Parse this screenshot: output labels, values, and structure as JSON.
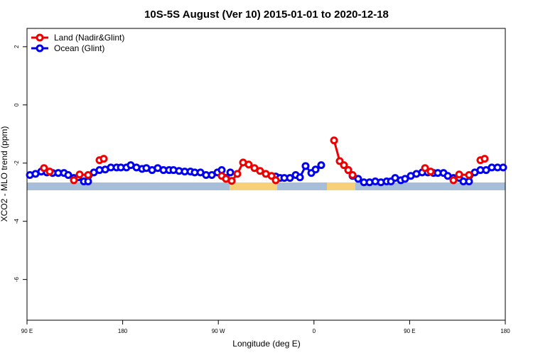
{
  "chart_data": {
    "type": "line",
    "title": "10S-5S August (Ver 10)   2015-01-01 to 2020-12-18",
    "x_label": "Longitude (deg E)",
    "y_label": "XCO2 - MLO trend (ppm)",
    "xlim": [
      90,
      540
    ],
    "ylim": [
      -7.4,
      2.63
    ],
    "xticks": [
      {
        "value": 90,
        "label": "90 E"
      },
      180,
      {
        "value": 270,
        "label": "90 W"
      },
      {
        "value": 360,
        "label": "0"
      },
      {
        "value": 450,
        "label": "90 E"
      },
      {
        "value": 540,
        "label": "180"
      }
    ],
    "yticks": [
      -6,
      -4,
      -2,
      0,
      2
    ],
    "legend": "top-left",
    "series": [
      {
        "name": "Ocean (Glint)",
        "color": "#0000ee",
        "x": [
          92.7,
          98.0,
          103.4,
          108.7,
          114.1,
          119.4,
          124.8,
          128.8,
          134.1,
          138.1,
          143.5,
          147.5,
          152.9,
          158.2,
          163.6,
          168.9,
          174.3,
          178.3,
          183.6,
          187.6,
          193.0,
          198.3,
          202.3,
          207.7,
          213.0,
          218.4,
          223.7,
          227.8,
          233.1,
          238.4,
          243.8,
          247.8,
          253.2,
          258.5,
          263.9,
          269.2,
          273.2,
          277.2,
          281.3,
          null,
          324.0,
          328.1,
          332.1,
          337.4,
          342.8,
          346.8,
          352.1,
          357.5,
          361.5,
          366.8,
          null,
          392.3,
          396.3,
          401.6,
          407.0,
          412.3,
          417.7,
          423.0,
          428.4,
          432.4,
          436.4,
          441.7,
          445.7,
          451.1,
          456.4,
          461.8,
          467.1,
          472.5,
          476.5,
          481.9,
          485.9,
          491.2,
          496.6,
          500.6,
          505.9,
          511.3,
          516.6,
          522.0,
          527.3,
          532.7,
          538.0
        ],
        "values": [
          -2.41,
          -2.37,
          -2.29,
          -2.32,
          -2.34,
          -2.34,
          -2.34,
          -2.41,
          -2.51,
          -2.49,
          -2.63,
          -2.63,
          -2.32,
          -2.24,
          -2.22,
          -2.15,
          -2.15,
          -2.15,
          -2.15,
          -2.07,
          -2.15,
          -2.2,
          -2.17,
          -2.24,
          -2.17,
          -2.24,
          -2.24,
          -2.24,
          -2.27,
          -2.29,
          -2.29,
          -2.32,
          -2.32,
          -2.41,
          -2.41,
          -2.32,
          -2.24,
          -2.51,
          -2.32,
          null,
          -2.46,
          -2.51,
          -2.51,
          -2.51,
          -2.41,
          -2.49,
          -2.1,
          -2.34,
          -2.22,
          -2.07,
          null,
          -2.24,
          -2.44,
          -2.54,
          -2.66,
          -2.66,
          -2.63,
          -2.66,
          -2.63,
          -2.63,
          -2.51,
          -2.59,
          -2.54,
          -2.44,
          -2.37,
          -2.32,
          -2.32,
          -2.34,
          -2.34,
          -2.34,
          -2.44,
          -2.51,
          -2.51,
          -2.63,
          -2.63,
          -2.32,
          -2.24,
          -2.24,
          -2.15,
          -2.15,
          -2.15
        ]
      },
      {
        "name": "Land (Nadir&Glint)",
        "color": "#ee0000",
        "x": [
          106.0,
          111.4,
          null,
          134.1,
          139.5,
          147.5,
          null,
          158.2,
          162.2,
          null,
          273.2,
          277.2,
          282.6,
          287.9,
          293.3,
          298.6,
          304.0,
          309.3,
          314.7,
          320.1,
          324.0,
          null,
          378.9,
          384.2,
          388.2,
          392.3,
          396.3,
          null,
          464.5,
          469.8,
          null,
          491.2,
          496.6,
          505.9,
          null,
          516.6,
          520.6
        ],
        "values": [
          -2.17,
          -2.29,
          null,
          -2.59,
          -2.39,
          -2.41,
          null,
          -1.9,
          -1.85,
          null,
          -2.44,
          -2.54,
          -2.61,
          -2.37,
          -1.98,
          -2.05,
          -2.17,
          -2.27,
          -2.37,
          -2.44,
          -2.59,
          null,
          -1.22,
          -1.93,
          -2.07,
          -2.24,
          -2.41,
          null,
          -2.17,
          -2.29,
          null,
          -2.59,
          -2.39,
          -2.41,
          null,
          -1.9,
          -1.85
        ]
      }
    ]
  }
}
